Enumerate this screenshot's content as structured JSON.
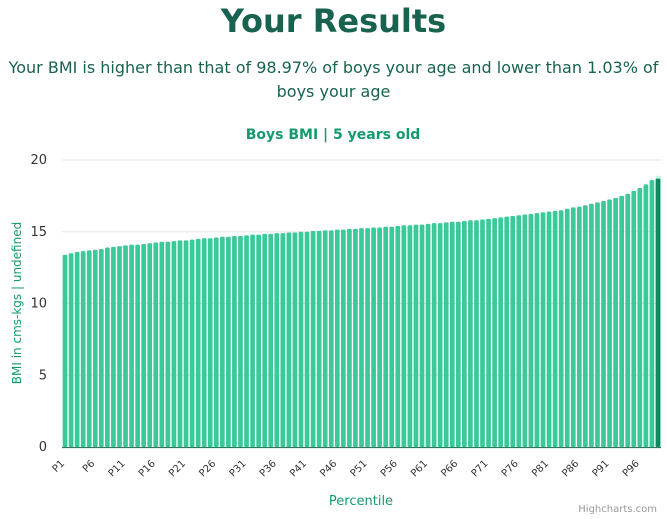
{
  "page": {
    "title": "Your Results",
    "result_text": "Your BMI is higher than that of 98.97% of boys your age and lower than 1.03% of boys your age",
    "credits": "Highcharts.com"
  },
  "colors": {
    "bar": "#3cc99a",
    "highlight": "#0f8a5f",
    "top_segment": "#c8f5e2",
    "title": "#17634f",
    "accent": "#159a6c",
    "axis_text": "#333333",
    "grid": "#e6e6e6",
    "axis_line": "#2f7a62"
  },
  "chart_data": {
    "type": "bar",
    "title": "Boys BMI | 5 years old",
    "xlabel": "Percentile",
    "ylabel": "BMI in cms-kgs | undefined",
    "ylim": [
      0,
      20
    ],
    "yticks": [
      0,
      5,
      10,
      15,
      20
    ],
    "grid": true,
    "legend": "none",
    "categories": [
      "P1",
      "P2",
      "P3",
      "P4",
      "P5",
      "P6",
      "P7",
      "P8",
      "P9",
      "P10",
      "P11",
      "P12",
      "P13",
      "P14",
      "P15",
      "P16",
      "P17",
      "P18",
      "P19",
      "P20",
      "P21",
      "P22",
      "P23",
      "P24",
      "P25",
      "P26",
      "P27",
      "P28",
      "P29",
      "P30",
      "P31",
      "P32",
      "P33",
      "P34",
      "P35",
      "P36",
      "P37",
      "P38",
      "P39",
      "P40",
      "P41",
      "P42",
      "P43",
      "P44",
      "P45",
      "P46",
      "P47",
      "P48",
      "P49",
      "P50",
      "P51",
      "P52",
      "P53",
      "P54",
      "P55",
      "P56",
      "P57",
      "P58",
      "P59",
      "P60",
      "P61",
      "P62",
      "P63",
      "P64",
      "P65",
      "P66",
      "P67",
      "P68",
      "P69",
      "P70",
      "P71",
      "P72",
      "P73",
      "P74",
      "P75",
      "P76",
      "P77",
      "P78",
      "P79",
      "P80",
      "P81",
      "P82",
      "P83",
      "P84",
      "P85",
      "P86",
      "P87",
      "P88",
      "P89",
      "P90",
      "P91",
      "P92",
      "P93",
      "P94",
      "P95",
      "P96",
      "P97",
      "P98",
      "P99"
    ],
    "tick_labels": [
      "P1",
      "P6",
      "P11",
      "P16",
      "P21",
      "P26",
      "P31",
      "P36",
      "P41",
      "P46",
      "P51",
      "P56",
      "P61",
      "P66",
      "P71",
      "P76",
      "P81",
      "P86",
      "P91",
      "P96"
    ],
    "values": [
      13.4,
      13.5,
      13.6,
      13.65,
      13.7,
      13.75,
      13.8,
      13.9,
      13.95,
      14.0,
      14.05,
      14.1,
      14.1,
      14.15,
      14.2,
      14.25,
      14.3,
      14.3,
      14.35,
      14.4,
      14.4,
      14.45,
      14.5,
      14.55,
      14.55,
      14.6,
      14.65,
      14.65,
      14.7,
      14.7,
      14.75,
      14.8,
      14.8,
      14.85,
      14.85,
      14.9,
      14.9,
      14.95,
      14.95,
      15.0,
      15.0,
      15.05,
      15.05,
      15.1,
      15.1,
      15.15,
      15.15,
      15.2,
      15.2,
      15.25,
      15.25,
      15.3,
      15.3,
      15.35,
      15.35,
      15.4,
      15.45,
      15.45,
      15.5,
      15.5,
      15.55,
      15.6,
      15.6,
      15.65,
      15.7,
      15.7,
      15.75,
      15.8,
      15.8,
      15.85,
      15.9,
      15.95,
      16.0,
      16.05,
      16.1,
      16.15,
      16.2,
      16.25,
      16.3,
      16.35,
      16.4,
      16.45,
      16.5,
      16.6,
      16.7,
      16.75,
      16.85,
      16.95,
      17.05,
      17.15,
      17.25,
      17.35,
      17.5,
      17.65,
      17.85,
      18.05,
      18.3,
      18.6,
      18.7
    ],
    "highlight_category": "P99",
    "highlight_top": 18.9
  }
}
